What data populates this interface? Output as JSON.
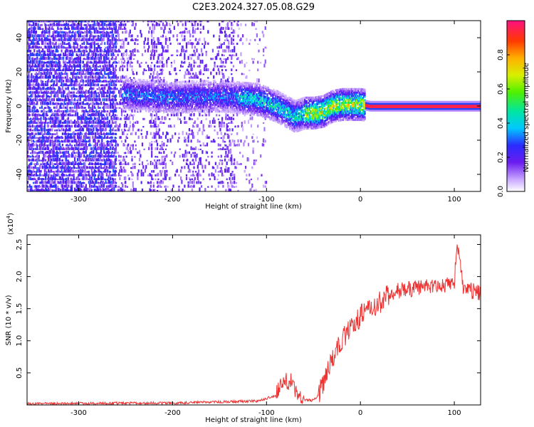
{
  "title": "C2E3.2024.327.05.08.G29",
  "chart_data": [
    {
      "type": "heatmap",
      "xlabel": "Height of straight line (km)",
      "ylabel": "Frequency (Hz)",
      "xlim": [
        -355,
        128
      ],
      "ylim": [
        -50,
        50
      ],
      "x_ticks": [
        -300,
        -200,
        -100,
        0,
        100
      ],
      "y_ticks": [
        -40,
        -20,
        0,
        20,
        40
      ],
      "colorbar": {
        "label": "Normalized spectral amplitude",
        "range": [
          0,
          1
        ],
        "ticks": [
          "0.0",
          "0.2",
          "0.4",
          "0.6",
          "0.8"
        ]
      },
      "ridge": {
        "x": [
          -250,
          -200,
          -150,
          -130,
          -110,
          -90,
          -80,
          -70,
          -60,
          -50,
          -40,
          -30,
          -20,
          -10,
          0,
          10,
          50,
          100,
          128
        ],
        "y": [
          7,
          5,
          6,
          5,
          4,
          0,
          -3,
          -6,
          -4,
          -4,
          -3,
          0,
          1,
          1,
          1,
          0,
          0,
          0,
          0
        ]
      }
    },
    {
      "type": "line",
      "xlabel": "Height of straight line (km)",
      "ylabel": "SNR (10 * v/v)",
      "y_multiplier": "(x10",
      "y_multiplier_exp": "4",
      "y_multiplier_close": ")",
      "xlim": [
        -355,
        128
      ],
      "ylim": [
        0,
        2.65
      ],
      "x_ticks": [
        -300,
        -200,
        -100,
        0,
        100
      ],
      "y_ticks": [
        "0.5",
        "1.0",
        "1.5",
        "2.0",
        "2.5"
      ],
      "color": "#ee3333",
      "series": [
        {
          "x": [
            -355,
            -200,
            -140,
            -110,
            -100,
            -90,
            -85,
            -80,
            -75,
            -72,
            -70,
            -65,
            -60,
            -50,
            -45,
            -40,
            -35,
            -30,
            -25,
            -20,
            -15,
            -10,
            0,
            10,
            20,
            30,
            40,
            60,
            80,
            90,
            100,
            103,
            110,
            128
          ],
          "y": [
            0.02,
            0.03,
            0.05,
            0.06,
            0.1,
            0.15,
            0.25,
            0.35,
            0.3,
            0.4,
            0.2,
            0.1,
            0.08,
            0.07,
            0.15,
            0.3,
            0.55,
            0.75,
            0.85,
            1.0,
            1.1,
            1.2,
            1.4,
            1.5,
            1.6,
            1.7,
            1.78,
            1.82,
            1.85,
            1.85,
            1.9,
            2.5,
            1.8,
            1.75
          ]
        }
      ]
    }
  ]
}
